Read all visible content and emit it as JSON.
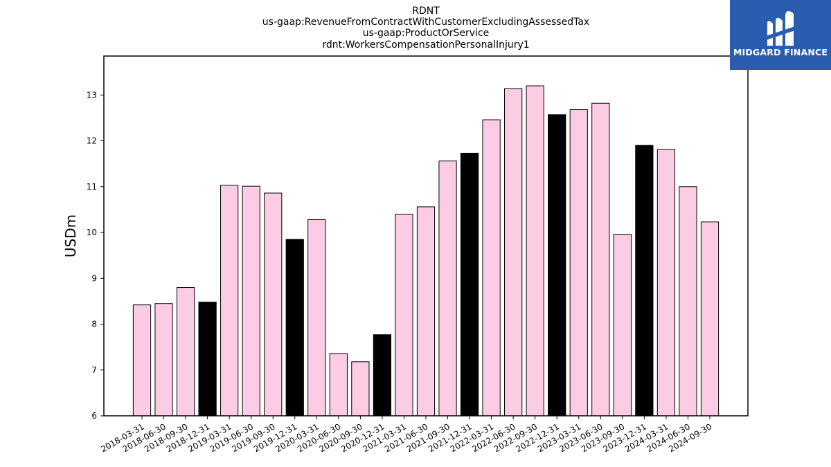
{
  "titles": [
    "RDNT",
    "us-gaap:RevenueFromContractWithCustomerExcludingAssessedTax",
    "us-gaap:ProductOrService",
    "rdnt:WorkersCompensationPersonalInjury1"
  ],
  "logo": {
    "text": "MIDGARD FINANCE",
    "color": "#2a5db0",
    "icon": "midgard-logo-icon"
  },
  "chart_data": {
    "type": "bar",
    "ylabel": "USDm",
    "xlabel": "",
    "ylim": [
      6,
      13.85
    ],
    "yticks": [
      6,
      7,
      8,
      9,
      10,
      11,
      12,
      13
    ],
    "grid": false,
    "colors": {
      "quarter": "#fccbe4",
      "year_end": "#000000",
      "edge": "#000000"
    },
    "categories": [
      "2018-03-31",
      "2018-06-30",
      "2018-09-30",
      "2018-12-31",
      "2019-03-31",
      "2019-06-30",
      "2019-09-30",
      "2019-12-31",
      "2020-03-31",
      "2020-06-30",
      "2020-09-30",
      "2020-12-31",
      "2021-03-31",
      "2021-06-30",
      "2021-09-30",
      "2021-12-31",
      "2022-03-31",
      "2022-06-30",
      "2022-09-30",
      "2022-12-31",
      "2023-03-31",
      "2023-06-30",
      "2023-09-30",
      "2023-12-31",
      "2024-03-31",
      "2024-06-30",
      "2024-09-30"
    ],
    "values": [
      8.42,
      8.45,
      8.8,
      8.48,
      11.03,
      11.01,
      10.86,
      9.85,
      10.28,
      7.36,
      7.18,
      7.77,
      10.4,
      10.56,
      11.56,
      11.73,
      12.46,
      13.14,
      13.2,
      12.57,
      12.68,
      12.82,
      9.96,
      11.9,
      11.81,
      11.0,
      10.23
    ],
    "year_end": [
      false,
      false,
      false,
      true,
      false,
      false,
      false,
      true,
      false,
      false,
      false,
      true,
      false,
      false,
      false,
      true,
      false,
      false,
      false,
      true,
      false,
      false,
      false,
      true,
      false,
      false,
      false
    ]
  }
}
